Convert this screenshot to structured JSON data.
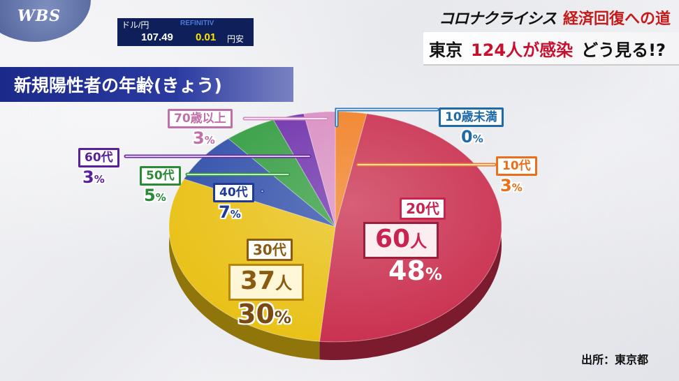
{
  "logo": "WBS",
  "ticker": {
    "label": "ドル/円",
    "brand": "REFINITIV",
    "value": "107.49",
    "change": "0.01",
    "direction": "円安"
  },
  "header": {
    "series": "コロナクライシス",
    "topic": "経済回復への道",
    "headline_1": "東京",
    "headline_2": "124人が感染",
    "headline_3": "どう見る!?"
  },
  "title": "新規陽性者の年齢(きょう)",
  "source": "出所：東京都",
  "colors": {
    "u10": "#2a78b8",
    "10s": "#f07c1e",
    "20s": "#c82a4a",
    "30s": "#e8bf10",
    "40s": "#2d4ca8",
    "50s": "#2e9a3c",
    "60s": "#6a2aa8",
    "70s": "#d88ac0"
  },
  "chart_data": {
    "type": "pie",
    "title": "新規陽性者の年齢(きょう)",
    "unit": "%",
    "slices": [
      {
        "label": "10歳未満",
        "pct": 0,
        "color": "#2a78b8"
      },
      {
        "label": "10代",
        "pct": 3,
        "color": "#f07c1e"
      },
      {
        "label": "20代",
        "pct": 48,
        "count": "60人",
        "color": "#c82a4a"
      },
      {
        "label": "30代",
        "pct": 30,
        "count": "37人",
        "color": "#e8bf10"
      },
      {
        "label": "40代",
        "pct": 7,
        "color": "#2d4ca8"
      },
      {
        "label": "50代",
        "pct": 5,
        "color": "#2e9a3c"
      },
      {
        "label": "60代",
        "pct": 3,
        "color": "#6a2aa8"
      },
      {
        "label": "70歳以上",
        "pct": 3,
        "color": "#d88ac0"
      }
    ],
    "pct_text": [
      "0",
      "3",
      "48",
      "30",
      "7",
      "5",
      "3",
      "3"
    ],
    "pct_sign": "%",
    "count_20s": {
      "num": "60",
      "unit": "人"
    },
    "count_30s": {
      "num": "37",
      "unit": "人"
    }
  }
}
